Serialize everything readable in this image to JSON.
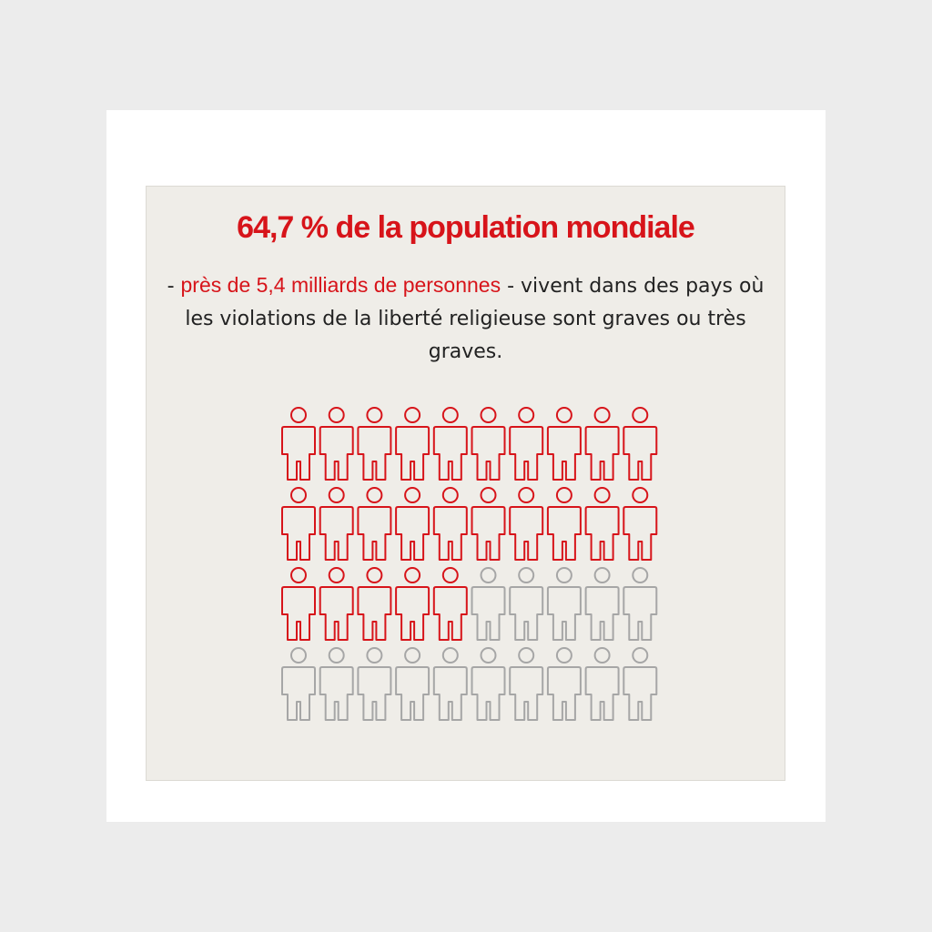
{
  "title": "64,7  % de la population mondiale",
  "subtitle": {
    "lead": "-",
    "highlight": "près de 5,4 milliards de personnes",
    "rest": "- vivent dans des pays où les violations de la liberté religieuse sont graves ou très graves."
  },
  "pictogram": {
    "total": 40,
    "highlighted": 25,
    "columns": 10,
    "highlight_color": "#d7141a",
    "base_color": "#a6a6a6"
  }
}
